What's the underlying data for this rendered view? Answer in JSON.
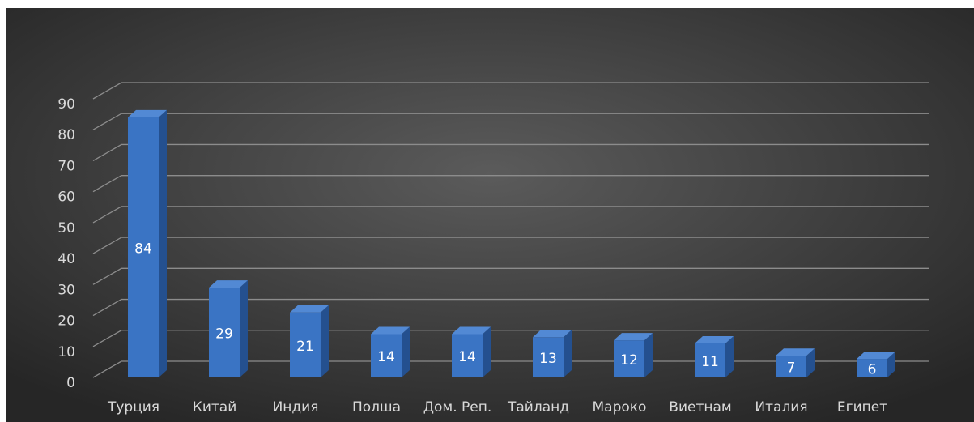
{
  "chart_data": {
    "type": "bar3d",
    "categories": [
      "Турция",
      "Китай",
      "Индия",
      "Полша",
      "Дом. Реп.",
      "Тайланд",
      "Мароко",
      "Виетнам",
      "Италия",
      "Египет"
    ],
    "values": [
      84,
      29,
      21,
      14,
      14,
      13,
      12,
      11,
      7,
      6
    ],
    "color": "#3a74c4",
    "ylim": [
      0,
      90
    ],
    "yticks": [
      0,
      10,
      20,
      30,
      40,
      50,
      60,
      70,
      80,
      90
    ],
    "grid": true
  }
}
